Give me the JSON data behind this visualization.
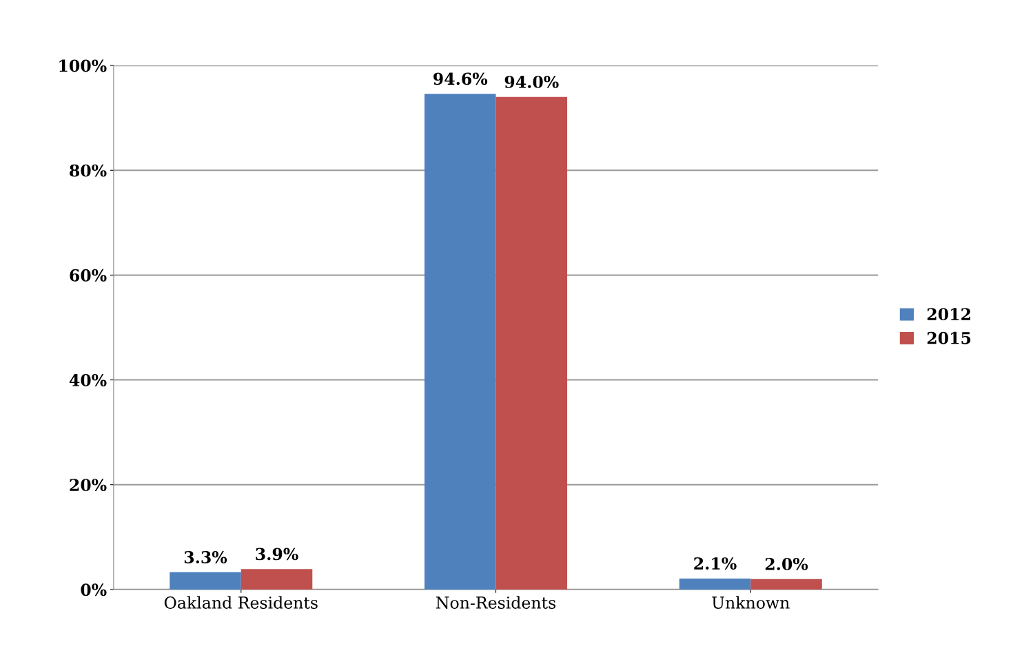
{
  "chart_data": {
    "type": "bar",
    "categories": [
      "Oakland Residents",
      "Non-Residents",
      "Unknown"
    ],
    "series": [
      {
        "name": "2012",
        "color": "#4f81bd",
        "values": [
          3.3,
          94.6,
          2.1
        ],
        "value_labels": [
          "3.3%",
          "94.6%",
          "2.1%"
        ]
      },
      {
        "name": "2015",
        "color": "#c0504d",
        "values": [
          3.9,
          94.0,
          2.0
        ],
        "value_labels": [
          "3.9%",
          "94.0%",
          "2.0%"
        ]
      }
    ],
    "ylim": [
      0,
      100
    ],
    "yticks": [
      {
        "value": 0,
        "label": "0%"
      },
      {
        "value": 20,
        "label": "20%"
      },
      {
        "value": 40,
        "label": "40%"
      },
      {
        "value": 60,
        "label": "60%"
      },
      {
        "value": 80,
        "label": "80%"
      },
      {
        "value": 100,
        "label": "100%"
      }
    ],
    "grid": "y",
    "legend": "right"
  }
}
